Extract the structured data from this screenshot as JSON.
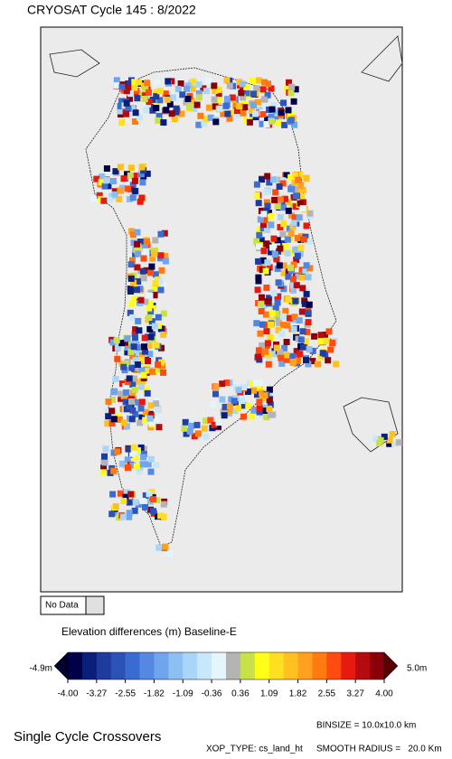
{
  "header": {
    "title": "CRYOSAT Cycle 145 : 8/2022"
  },
  "legend": {
    "no_data": "No Data"
  },
  "colorbar": {
    "title": "Elevation differences (m) Baseline-E",
    "min_label": "-4.9m",
    "max_label": "5.0m",
    "ticks": [
      "-4.00",
      "-3.27",
      "-2.55",
      "-1.82",
      "-1.09",
      "-0.36",
      "0.36",
      "1.09",
      "1.82",
      "2.55",
      "3.27",
      "4.00"
    ],
    "colors": [
      "#00004a",
      "#0a1f7a",
      "#1f3b9e",
      "#2c52b8",
      "#3a6bd0",
      "#5588e0",
      "#70a4ec",
      "#8dbff3",
      "#a9d6f7",
      "#c6e8fa",
      "#e4f5fc",
      "#b4b4b4",
      "#c8e04a",
      "#ffff1a",
      "#ffe020",
      "#ffc020",
      "#ffa020",
      "#ff7a10",
      "#ff4a10",
      "#e61a10",
      "#b40a10",
      "#8a0008"
    ],
    "low_color": "#000030",
    "high_color": "#5a0005"
  },
  "footer": {
    "title": "Single Cycle Crossovers",
    "binsize": "BINSIZE = 10.0x10.0 km",
    "xop_type": "XOP_TYPE: cs_land_ht",
    "smooth_radius": "SMOOTH RADIUS =   20.0 Km"
  }
}
